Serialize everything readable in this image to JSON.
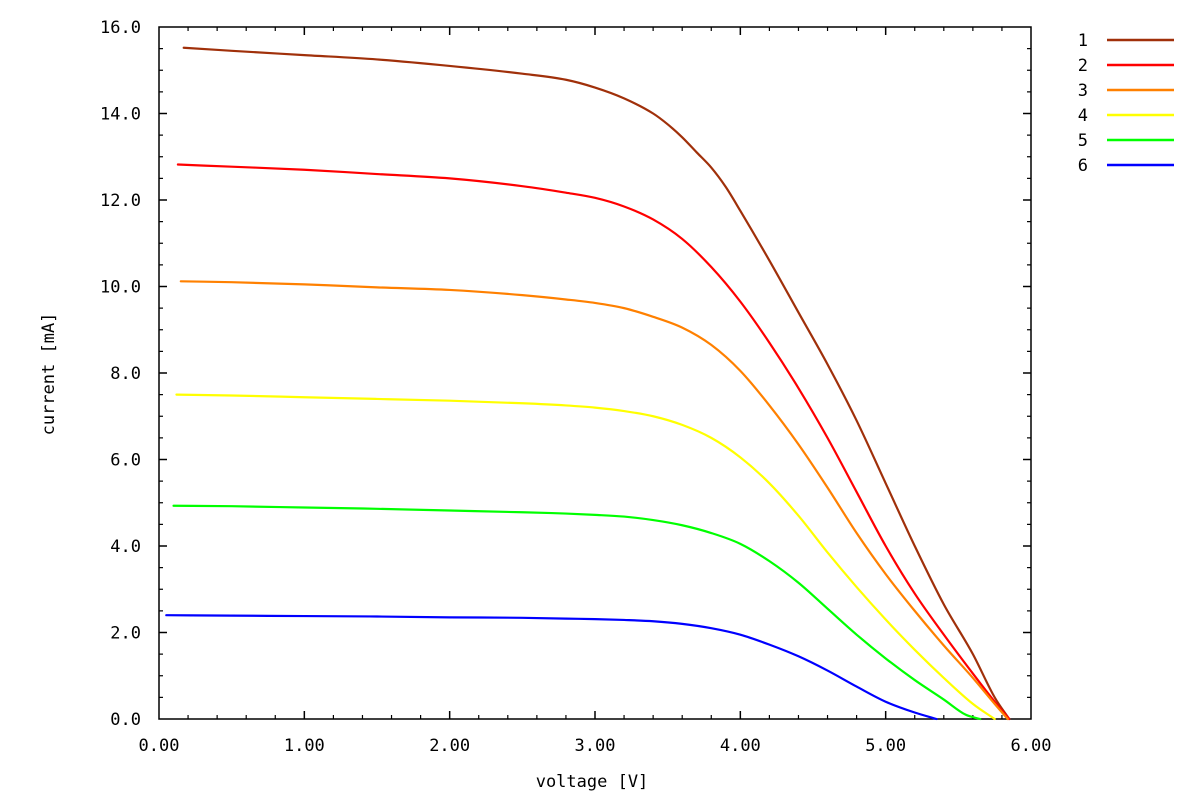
{
  "chart_data": {
    "type": "line",
    "xlabel": "voltage [V]",
    "ylabel": "current [mA]",
    "xlim": [
      0,
      6
    ],
    "ylim": [
      0,
      16
    ],
    "x_ticks": [
      0,
      1,
      2,
      3,
      4,
      5,
      6
    ],
    "x_tick_labels": [
      "0.00",
      "1.00",
      "2.00",
      "3.00",
      "4.00",
      "5.00",
      "6.00"
    ],
    "y_ticks": [
      0,
      2,
      4,
      6,
      8,
      10,
      12,
      14,
      16
    ],
    "y_tick_labels": [
      "0.0",
      "2.0",
      "4.0",
      "6.0",
      "8.0",
      "10.0",
      "12.0",
      "14.0",
      "16.0"
    ],
    "grid": false,
    "legend_position": "outside-top-right",
    "series": [
      {
        "name": "1",
        "color": "#a0300a",
        "points": [
          [
            0.17,
            15.52
          ],
          [
            0.5,
            15.45
          ],
          [
            1.0,
            15.35
          ],
          [
            1.5,
            15.25
          ],
          [
            2.0,
            15.1
          ],
          [
            2.5,
            14.92
          ],
          [
            2.8,
            14.78
          ],
          [
            3.0,
            14.6
          ],
          [
            3.2,
            14.35
          ],
          [
            3.4,
            14.0
          ],
          [
            3.5,
            13.75
          ],
          [
            3.6,
            13.45
          ],
          [
            3.7,
            13.1
          ],
          [
            3.8,
            12.75
          ],
          [
            3.9,
            12.3
          ],
          [
            4.0,
            11.75
          ],
          [
            4.2,
            10.6
          ],
          [
            4.4,
            9.4
          ],
          [
            4.6,
            8.2
          ],
          [
            4.8,
            6.9
          ],
          [
            5.0,
            5.45
          ],
          [
            5.2,
            4.0
          ],
          [
            5.4,
            2.65
          ],
          [
            5.6,
            1.5
          ],
          [
            5.75,
            0.5
          ],
          [
            5.85,
            0.0
          ]
        ]
      },
      {
        "name": "2",
        "color": "#ff0000",
        "points": [
          [
            0.13,
            12.82
          ],
          [
            0.5,
            12.77
          ],
          [
            1.0,
            12.7
          ],
          [
            1.5,
            12.6
          ],
          [
            2.0,
            12.5
          ],
          [
            2.5,
            12.32
          ],
          [
            2.8,
            12.17
          ],
          [
            3.0,
            12.05
          ],
          [
            3.2,
            11.85
          ],
          [
            3.4,
            11.55
          ],
          [
            3.6,
            11.1
          ],
          [
            3.8,
            10.45
          ],
          [
            4.0,
            9.65
          ],
          [
            4.2,
            8.7
          ],
          [
            4.4,
            7.65
          ],
          [
            4.6,
            6.5
          ],
          [
            4.8,
            5.25
          ],
          [
            5.0,
            4.0
          ],
          [
            5.2,
            2.9
          ],
          [
            5.4,
            1.95
          ],
          [
            5.6,
            1.05
          ],
          [
            5.75,
            0.4
          ],
          [
            5.85,
            0.0
          ]
        ]
      },
      {
        "name": "3",
        "color": "#ff8000",
        "points": [
          [
            0.15,
            10.12
          ],
          [
            0.5,
            10.1
          ],
          [
            1.0,
            10.05
          ],
          [
            1.5,
            9.98
          ],
          [
            2.0,
            9.92
          ],
          [
            2.5,
            9.8
          ],
          [
            2.8,
            9.7
          ],
          [
            3.0,
            9.62
          ],
          [
            3.2,
            9.5
          ],
          [
            3.4,
            9.3
          ],
          [
            3.6,
            9.05
          ],
          [
            3.8,
            8.65
          ],
          [
            4.0,
            8.05
          ],
          [
            4.2,
            7.25
          ],
          [
            4.4,
            6.35
          ],
          [
            4.6,
            5.35
          ],
          [
            4.8,
            4.3
          ],
          [
            5.0,
            3.35
          ],
          [
            5.2,
            2.5
          ],
          [
            5.4,
            1.7
          ],
          [
            5.6,
            0.95
          ],
          [
            5.75,
            0.35
          ],
          [
            5.84,
            0.0
          ]
        ]
      },
      {
        "name": "4",
        "color": "#ffff00",
        "points": [
          [
            0.12,
            7.5
          ],
          [
            0.5,
            7.48
          ],
          [
            1.0,
            7.44
          ],
          [
            1.5,
            7.4
          ],
          [
            2.0,
            7.36
          ],
          [
            2.5,
            7.3
          ],
          [
            2.8,
            7.25
          ],
          [
            3.0,
            7.2
          ],
          [
            3.2,
            7.12
          ],
          [
            3.4,
            7.0
          ],
          [
            3.6,
            6.8
          ],
          [
            3.8,
            6.5
          ],
          [
            4.0,
            6.05
          ],
          [
            4.2,
            5.45
          ],
          [
            4.4,
            4.7
          ],
          [
            4.6,
            3.85
          ],
          [
            4.8,
            3.05
          ],
          [
            5.0,
            2.3
          ],
          [
            5.2,
            1.6
          ],
          [
            5.4,
            0.95
          ],
          [
            5.6,
            0.35
          ],
          [
            5.75,
            0.0
          ]
        ]
      },
      {
        "name": "5",
        "color": "#00ff00",
        "points": [
          [
            0.1,
            4.93
          ],
          [
            0.5,
            4.92
          ],
          [
            1.0,
            4.89
          ],
          [
            1.5,
            4.86
          ],
          [
            2.0,
            4.82
          ],
          [
            2.5,
            4.78
          ],
          [
            2.8,
            4.75
          ],
          [
            3.0,
            4.72
          ],
          [
            3.2,
            4.68
          ],
          [
            3.4,
            4.6
          ],
          [
            3.6,
            4.48
          ],
          [
            3.8,
            4.3
          ],
          [
            4.0,
            4.05
          ],
          [
            4.2,
            3.65
          ],
          [
            4.4,
            3.15
          ],
          [
            4.6,
            2.55
          ],
          [
            4.8,
            1.95
          ],
          [
            5.0,
            1.4
          ],
          [
            5.2,
            0.9
          ],
          [
            5.4,
            0.45
          ],
          [
            5.55,
            0.1
          ],
          [
            5.65,
            0.0
          ]
        ]
      },
      {
        "name": "6",
        "color": "#0000ff",
        "points": [
          [
            0.05,
            2.4
          ],
          [
            0.5,
            2.39
          ],
          [
            1.0,
            2.38
          ],
          [
            1.5,
            2.37
          ],
          [
            2.0,
            2.35
          ],
          [
            2.5,
            2.34
          ],
          [
            2.8,
            2.32
          ],
          [
            3.0,
            2.31
          ],
          [
            3.2,
            2.29
          ],
          [
            3.4,
            2.26
          ],
          [
            3.6,
            2.2
          ],
          [
            3.8,
            2.1
          ],
          [
            4.0,
            1.95
          ],
          [
            4.2,
            1.72
          ],
          [
            4.4,
            1.45
          ],
          [
            4.6,
            1.12
          ],
          [
            4.8,
            0.75
          ],
          [
            5.0,
            0.4
          ],
          [
            5.2,
            0.15
          ],
          [
            5.35,
            0.0
          ]
        ]
      }
    ]
  }
}
